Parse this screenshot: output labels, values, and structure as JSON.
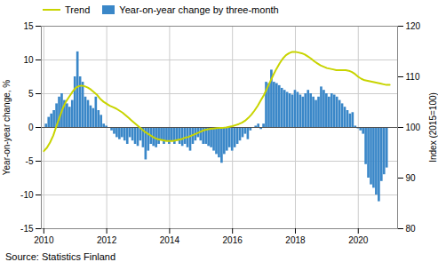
{
  "chart_data": {
    "type": "bar",
    "ylabel": "Year-on-year change, %",
    "y2label": "Index (2015=100)",
    "annotations": [
      "Source: Statistics Finland"
    ],
    "xlim": [
      2009.92,
      2021.25
    ],
    "xticks": [
      2010,
      2012,
      2014,
      2016,
      2018,
      2020
    ],
    "ylim": [
      -15,
      15
    ],
    "yticks": [
      -15,
      -10,
      -5,
      0,
      5,
      10,
      15
    ],
    "y2lim": [
      80,
      120
    ],
    "y2ticks": [
      80,
      90,
      100,
      110,
      120
    ],
    "grid": true,
    "legend": "upper left",
    "series": [
      {
        "name": "Trend",
        "type": "line",
        "color": "#c8d400",
        "x": [
          2010.0,
          2010.1,
          2010.2,
          2010.3,
          2010.4,
          2010.5,
          2010.6,
          2010.7,
          2010.8,
          2010.9,
          2011.0,
          2011.1,
          2011.2,
          2011.3,
          2011.4,
          2011.5,
          2011.6,
          2011.7,
          2011.8,
          2011.9,
          2012.0,
          2012.1,
          2012.2,
          2012.3,
          2012.4,
          2012.5,
          2012.6,
          2012.7,
          2012.8,
          2012.9,
          2013.0,
          2013.1,
          2013.2,
          2013.3,
          2013.4,
          2013.5,
          2013.6,
          2013.7,
          2013.8,
          2013.9,
          2014.0,
          2014.1,
          2014.2,
          2014.3,
          2014.4,
          2014.5,
          2014.6,
          2014.7,
          2014.8,
          2014.9,
          2015.0,
          2015.1,
          2015.2,
          2015.3,
          2015.4,
          2015.5,
          2015.6,
          2015.7,
          2015.8,
          2015.9,
          2016.0,
          2016.1,
          2016.2,
          2016.3,
          2016.4,
          2016.5,
          2016.6,
          2016.7,
          2016.8,
          2016.9,
          2017.0,
          2017.1,
          2017.2,
          2017.3,
          2017.4,
          2017.5,
          2017.6,
          2017.7,
          2017.8,
          2017.9,
          2018.0,
          2018.1,
          2018.2,
          2018.3,
          2018.4,
          2018.5,
          2018.6,
          2018.7,
          2018.8,
          2018.9,
          2019.0,
          2019.1,
          2019.2,
          2019.3,
          2019.4,
          2019.5,
          2019.6,
          2019.7,
          2019.8,
          2019.9,
          2020.0,
          2020.1,
          2020.2,
          2020.3,
          2020.4,
          2020.5,
          2020.6,
          2020.7,
          2020.8,
          2020.9,
          2021.0
        ],
        "values": [
          -3.5,
          -3.0,
          -2.2,
          -1.2,
          0.2,
          1.5,
          2.8,
          3.8,
          4.5,
          5.2,
          5.8,
          6.1,
          6.2,
          6.1,
          5.9,
          5.6,
          5.2,
          4.8,
          4.2,
          3.8,
          3.5,
          3.2,
          3.0,
          2.8,
          2.5,
          2.2,
          1.8,
          1.4,
          1.0,
          0.6,
          0.2,
          -0.2,
          -0.6,
          -0.9,
          -1.2,
          -1.5,
          -1.7,
          -1.8,
          -1.9,
          -2.0,
          -2.0,
          -2.0,
          -1.9,
          -1.8,
          -1.7,
          -1.5,
          -1.4,
          -1.2,
          -1.0,
          -0.8,
          -0.6,
          -0.4,
          -0.3,
          -0.2,
          -0.15,
          -0.1,
          -0.08,
          -0.05,
          0.0,
          0.1,
          0.2,
          0.35,
          0.5,
          0.7,
          1.0,
          1.4,
          1.9,
          2.5,
          3.2,
          4.0,
          4.8,
          5.8,
          6.8,
          7.8,
          8.7,
          9.5,
          10.2,
          10.7,
          11.0,
          11.2,
          11.2,
          11.1,
          11.0,
          10.8,
          10.5,
          10.2,
          9.8,
          9.5,
          9.2,
          9.0,
          8.8,
          8.7,
          8.6,
          8.5,
          8.5,
          8.5,
          8.5,
          8.4,
          8.2,
          7.9,
          7.5,
          7.2,
          7.0,
          6.9,
          6.8,
          6.7,
          6.6,
          6.5,
          6.4,
          6.3,
          6.3
        ]
      },
      {
        "name": "Year-on-year change by three-month",
        "type": "bar",
        "color": "#3a87c8",
        "x": [
          2010.083,
          2010.167,
          2010.25,
          2010.333,
          2010.417,
          2010.5,
          2010.583,
          2010.667,
          2010.75,
          2010.833,
          2010.917,
          2011.0,
          2011.083,
          2011.167,
          2011.25,
          2011.333,
          2011.417,
          2011.5,
          2011.583,
          2011.667,
          2011.75,
          2011.833,
          2011.917,
          2012.0,
          2012.083,
          2012.167,
          2012.25,
          2012.333,
          2012.417,
          2012.5,
          2012.583,
          2012.667,
          2012.75,
          2012.833,
          2012.917,
          2013.0,
          2013.083,
          2013.167,
          2013.25,
          2013.333,
          2013.417,
          2013.5,
          2013.583,
          2013.667,
          2013.75,
          2013.833,
          2013.917,
          2014.0,
          2014.083,
          2014.167,
          2014.25,
          2014.333,
          2014.417,
          2014.5,
          2014.583,
          2014.667,
          2014.75,
          2014.833,
          2014.917,
          2015.0,
          2015.083,
          2015.167,
          2015.25,
          2015.333,
          2015.417,
          2015.5,
          2015.583,
          2015.667,
          2015.75,
          2015.833,
          2015.917,
          2016.0,
          2016.083,
          2016.167,
          2016.25,
          2016.333,
          2016.417,
          2016.5,
          2016.583,
          2016.667,
          2016.75,
          2016.833,
          2016.917,
          2017.0,
          2017.083,
          2017.167,
          2017.25,
          2017.333,
          2017.417,
          2017.5,
          2017.583,
          2017.667,
          2017.75,
          2017.833,
          2017.917,
          2018.0,
          2018.083,
          2018.167,
          2018.25,
          2018.333,
          2018.417,
          2018.5,
          2018.583,
          2018.667,
          2018.75,
          2018.833,
          2018.917,
          2019.0,
          2019.083,
          2019.167,
          2019.25,
          2019.333,
          2019.417,
          2019.5,
          2019.583,
          2019.667,
          2019.75,
          2019.833,
          2019.917,
          2020.0,
          2020.083,
          2020.167,
          2020.25,
          2020.333,
          2020.417,
          2020.5,
          2020.583,
          2020.667,
          2020.75,
          2020.833,
          2020.917
        ],
        "values": [
          0.5,
          1.5,
          2.0,
          2.5,
          3.5,
          4.5,
          5.0,
          4.0,
          3.5,
          3.0,
          4.0,
          7.5,
          11.2,
          7.5,
          6.7,
          4.5,
          4.0,
          3.2,
          2.8,
          4.5,
          2.5,
          1.8,
          0.5,
          0.2,
          0.0,
          -0.5,
          -1.0,
          -1.5,
          -1.8,
          -1.5,
          -2.0,
          -2.5,
          -1.5,
          -2.0,
          -2.5,
          -2.8,
          -2.0,
          -3.0,
          -4.8,
          -3.5,
          -2.5,
          -2.8,
          -3.0,
          -2.5,
          -2.0,
          -2.5,
          -2.0,
          -2.5,
          -2.0,
          -2.5,
          -2.0,
          -2.5,
          -2.8,
          -2.5,
          -3.0,
          -3.5,
          -2.5,
          -2.0,
          -1.5,
          -2.0,
          -2.5,
          -2.5,
          -2.8,
          -3.0,
          -3.5,
          -4.0,
          -4.5,
          -5.3,
          -4.0,
          -3.5,
          -3.0,
          -3.5,
          -3.0,
          -2.5,
          -2.0,
          -1.5,
          -1.0,
          -1.8,
          -0.5,
          0.0,
          0.2,
          0.5,
          -0.3,
          0.5,
          6.7,
          6.5,
          8.5,
          6.7,
          6.5,
          6.2,
          5.8,
          5.5,
          5.2,
          5.0,
          4.8,
          5.5,
          5.2,
          4.8,
          4.5,
          5.0,
          5.5,
          5.0,
          4.5,
          4.0,
          4.5,
          6.0,
          5.5,
          5.0,
          4.5,
          5.0,
          4.8,
          4.5,
          4.0,
          3.5,
          3.0,
          2.5,
          2.0,
          2.2,
          0.2,
          -0.2,
          -0.5,
          -1.0,
          -5.5,
          -7.5,
          -8.5,
          -9.0,
          -10.0,
          -11.0,
          -8.0,
          -7.0,
          -6.0
        ]
      }
    ]
  }
}
